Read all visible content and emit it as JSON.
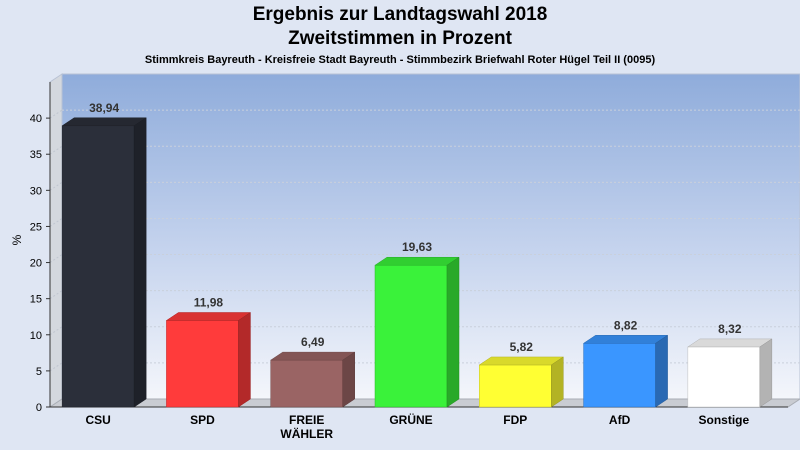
{
  "header": {
    "title_line1": "Ergebnis zur Landtagswahl 2018",
    "title_line2": "Zweitstimmen in Prozent",
    "subtitle": "Stimmkreis Bayreuth - Kreisfreie Stadt Bayreuth - Stimmbezirk Briefwahl Roter Hügel Teil II (0095)"
  },
  "chart_data": {
    "type": "bar",
    "title": "Ergebnis zur Landtagswahl 2018",
    "subtitle": "Zweitstimmen in Prozent",
    "ylabel": "%",
    "xlabel": "",
    "ylim": [
      0,
      45
    ],
    "yticks": [
      0,
      5,
      10,
      15,
      20,
      25,
      30,
      35,
      40
    ],
    "grid": true,
    "categories": [
      "CSU",
      "SPD",
      "FREIE WÄHLER",
      "GRÜNE",
      "FDP",
      "AfD",
      "Sonstige"
    ],
    "category_lines": [
      [
        "CSU"
      ],
      [
        "SPD"
      ],
      [
        "FREIE",
        "WÄHLER"
      ],
      [
        "GRÜNE"
      ],
      [
        "FDP"
      ],
      [
        "AfD"
      ],
      [
        "Sonstige"
      ]
    ],
    "values": [
      38.94,
      11.98,
      6.49,
      19.63,
      5.82,
      8.82,
      8.32
    ],
    "value_labels": [
      "38,94",
      "11,98",
      "6,49",
      "19,63",
      "5,82",
      "8,82",
      "8,32"
    ],
    "colors": [
      "#2b2f3a",
      "#ff3b3b",
      "#9a6464",
      "#3af23a",
      "#ffff33",
      "#3a96ff",
      "#ffffff"
    ]
  }
}
